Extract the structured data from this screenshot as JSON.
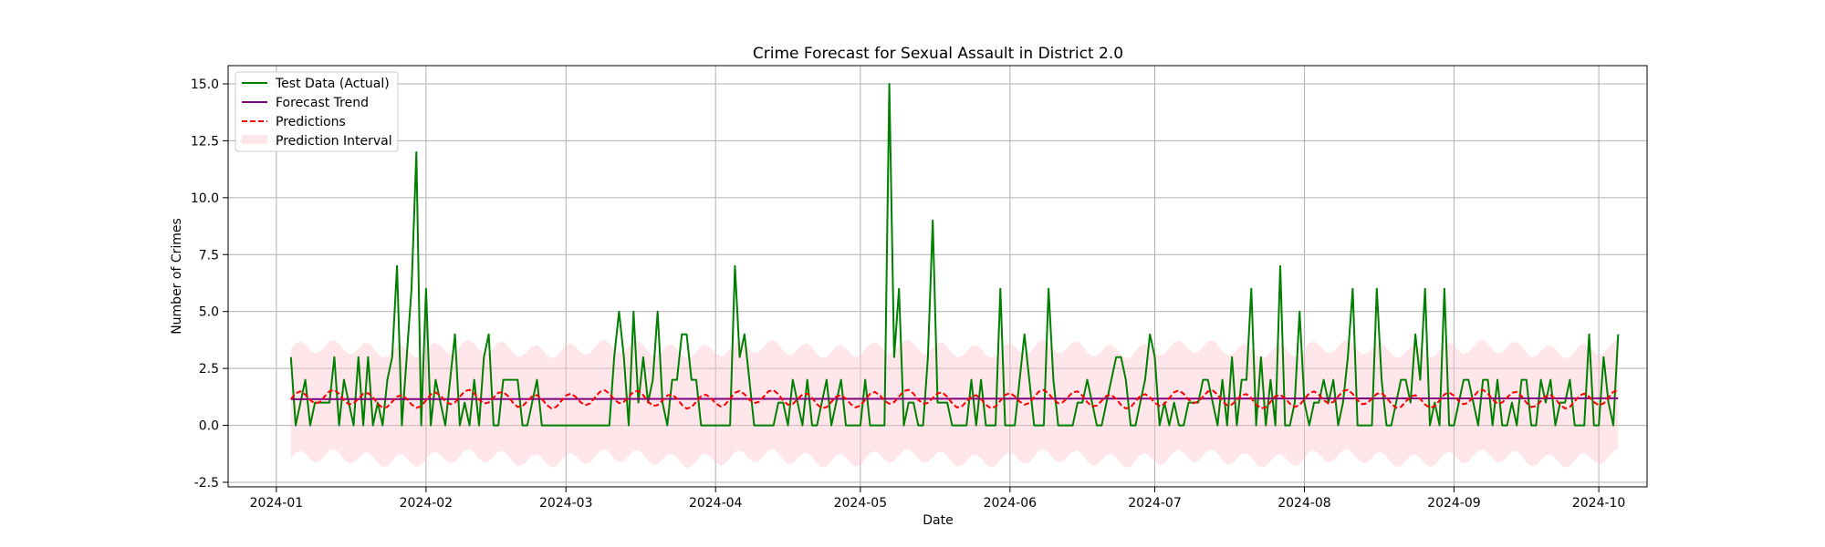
{
  "chart_data": {
    "type": "line",
    "title": "Crime Forecast for Sexual Assault in District 2.0",
    "xlabel": "Date",
    "ylabel": "Number of Crimes",
    "xlim": [
      "2023-12-22",
      "2024-10-11"
    ],
    "ylim": [
      -2.7,
      15.8
    ],
    "grid": true,
    "legend_position": "top-left",
    "x_ticks": [
      "2024-01",
      "2024-02",
      "2024-03",
      "2024-04",
      "2024-05",
      "2024-06",
      "2024-07",
      "2024-08",
      "2024-09",
      "2024-10"
    ],
    "y_ticks": [
      "-2.5",
      "0.0",
      "2.5",
      "5.0",
      "7.5",
      "10.0",
      "12.5",
      "15.0"
    ],
    "start_date": "2024-01-04",
    "end_date": "2024-09-19",
    "colors": {
      "actual": "#008000",
      "trend": "#800080",
      "predictions": "#ff0000",
      "interval": "#ffc0cb"
    },
    "series": [
      {
        "name": "Test Data (Actual)",
        "key": "actual",
        "values": [
          3,
          0,
          1,
          2,
          0,
          1,
          1,
          1,
          1,
          3,
          0,
          2,
          1,
          0,
          3,
          0,
          3,
          0,
          1,
          0,
          2,
          3,
          7,
          0,
          3,
          6,
          12,
          0,
          6,
          0,
          2,
          1,
          0,
          2,
          4,
          0,
          1,
          0,
          2,
          0,
          3,
          4,
          0,
          0,
          2,
          2,
          2,
          2,
          0,
          0,
          1,
          2,
          0,
          0,
          0,
          0,
          0,
          0,
          0,
          0,
          0,
          0,
          0,
          0,
          0,
          0,
          0,
          3,
          5,
          3,
          0,
          5,
          1,
          3,
          1,
          2,
          5,
          1,
          0,
          2,
          2,
          4,
          4,
          2,
          2,
          0,
          0,
          0,
          0,
          0,
          0,
          0,
          7,
          3,
          4,
          2,
          0,
          0,
          0,
          0,
          0,
          1,
          1,
          0,
          2,
          1,
          0,
          2,
          0,
          0,
          1,
          2,
          0,
          1,
          2,
          0,
          0,
          0,
          0,
          2,
          0,
          0,
          0,
          0,
          15,
          3,
          6,
          0,
          1,
          1,
          0,
          0,
          3,
          9,
          1,
          1,
          1,
          0,
          0,
          0,
          0,
          2,
          0,
          2,
          0,
          0,
          0,
          6,
          0,
          0,
          0,
          2,
          4,
          2,
          0,
          0,
          0,
          6,
          2,
          0,
          0,
          0,
          0,
          1,
          1,
          2,
          1,
          0,
          0,
          1,
          2,
          3,
          3,
          2,
          0,
          0,
          1,
          2,
          4,
          3,
          0,
          1,
          0,
          1,
          0,
          0,
          1,
          1,
          1,
          2,
          2,
          1,
          0,
          2,
          0,
          3,
          0,
          2,
          2,
          6,
          0,
          3,
          0,
          2,
          0,
          7,
          0,
          0,
          1,
          5,
          1,
          0,
          1,
          1,
          2,
          1,
          2,
          0,
          1,
          3,
          6,
          0,
          0,
          0,
          0,
          6,
          2,
          0,
          0,
          1,
          2,
          2,
          1,
          4,
          2,
          6,
          0,
          1,
          0,
          6,
          0,
          0,
          1,
          2,
          2,
          1,
          0,
          2,
          2,
          0,
          2,
          0,
          0,
          1,
          0,
          2,
          2,
          0,
          0,
          2,
          1,
          2,
          0,
          1,
          1,
          2,
          0,
          0,
          0,
          4,
          0,
          0,
          3,
          1,
          0,
          4
        ]
      },
      {
        "name": "Forecast Trend",
        "key": "trend",
        "values": [
          1.15,
          1.19
        ]
      },
      {
        "name": "Predictions",
        "key": "predictions",
        "base": 1.15,
        "weekly_amplitude": 0.3
      },
      {
        "name": "Prediction Interval",
        "key": "interval",
        "lower_offset": -2.6,
        "upper_offset": 2.2
      }
    ]
  }
}
